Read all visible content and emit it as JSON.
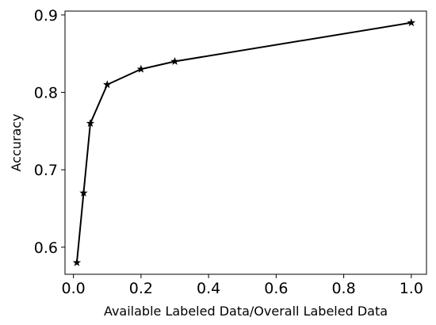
{
  "chart_data": {
    "type": "line",
    "title": "",
    "xlabel": "Available Labeled Data/Overall Labeled Data",
    "ylabel": "Accuracy",
    "xlim": [
      -0.025,
      1.045
    ],
    "ylim": [
      0.565,
      0.905
    ],
    "x_ticks": [
      0.0,
      0.2,
      0.4,
      0.6,
      0.8,
      1.0
    ],
    "x_tick_labels": [
      "0.0",
      "0.2",
      "0.4",
      "0.6",
      "0.8",
      "1.0"
    ],
    "y_ticks": [
      0.6,
      0.7,
      0.8,
      0.9
    ],
    "y_tick_labels": [
      "0.6",
      "0.7",
      "0.8",
      "0.9"
    ],
    "grid": false,
    "marker": "star",
    "line_color": "#000000",
    "series": [
      {
        "x": [
          0.01,
          0.03,
          0.05,
          0.1,
          0.2,
          0.3,
          1.0
        ],
        "y": [
          0.58,
          0.67,
          0.76,
          0.81,
          0.83,
          0.84,
          0.89
        ]
      }
    ]
  }
}
